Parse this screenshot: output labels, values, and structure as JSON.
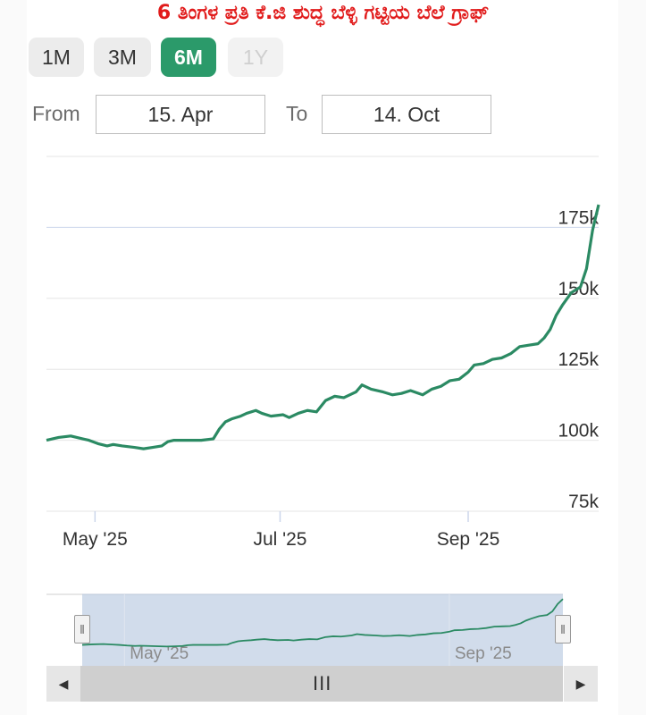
{
  "title": "6 ತಿಂಗಳ ಪ್ರತಿ ಕೆ.ಜಿ ಶುದ್ಧ ಬೆಳ್ಳಿ ಗಟ್ಟಿಯ ಬೆಲೆ ಗ್ರಾಫ್",
  "range_buttons": [
    {
      "label": "1M",
      "state": "normal"
    },
    {
      "label": "3M",
      "state": "normal"
    },
    {
      "label": "6M",
      "state": "active"
    },
    {
      "label": "1Y",
      "state": "disabled"
    }
  ],
  "date_range": {
    "from_label": "From",
    "from_value": "15. Apr",
    "to_label": "To",
    "to_value": "14. Oct"
  },
  "colors": {
    "line": "#2b8a63",
    "active_button": "#2b9a6a",
    "title": "#e11b1b",
    "navigator_mask": "#c9d6e8"
  },
  "navigator": {
    "x_labels": [
      "May '25",
      "Sep '25"
    ],
    "scroll_grip": "III"
  },
  "chart_data": {
    "type": "line",
    "x_ticks": [
      "May '25",
      "Jul '25",
      "Sep '25"
    ],
    "y_ticks": [
      "75k",
      "100k",
      "125k",
      "150k",
      "175k"
    ],
    "ylim": [
      75000,
      200000
    ],
    "grid": "horizontal",
    "x_start": "2025-04-15",
    "x_end": "2025-10-14",
    "series": [
      {
        "x": [
          "2025-04-15",
          "2025-04-19",
          "2025-04-23",
          "2025-04-27",
          "2025-04-29",
          "2025-05-02",
          "2025-05-05",
          "2025-05-07",
          "2025-05-10",
          "2025-05-14",
          "2025-05-17",
          "2025-05-20",
          "2025-05-23",
          "2025-05-25",
          "2025-05-27",
          "2025-05-29",
          "2025-06-01",
          "2025-06-05",
          "2025-06-09",
          "2025-06-11",
          "2025-06-13",
          "2025-06-15",
          "2025-06-18",
          "2025-06-20",
          "2025-06-23",
          "2025-06-25",
          "2025-06-28",
          "2025-07-02",
          "2025-07-04",
          "2025-07-07",
          "2025-07-10",
          "2025-07-13",
          "2025-07-16",
          "2025-07-19",
          "2025-07-22",
          "2025-07-26",
          "2025-07-28",
          "2025-07-31",
          "2025-08-04",
          "2025-08-07",
          "2025-08-10",
          "2025-08-13",
          "2025-08-17",
          "2025-08-20",
          "2025-08-23",
          "2025-08-26",
          "2025-08-29",
          "2025-09-01",
          "2025-09-03",
          "2025-09-06",
          "2025-09-09",
          "2025-09-12",
          "2025-09-15",
          "2025-09-18",
          "2025-09-21",
          "2025-09-24",
          "2025-09-26",
          "2025-09-28",
          "2025-09-30",
          "2025-10-02",
          "2025-10-05",
          "2025-10-08",
          "2025-10-10",
          "2025-10-12",
          "2025-10-14"
        ],
        "y": [
          100000,
          101000,
          101500,
          100500,
          100000,
          98800,
          98000,
          98500,
          98000,
          97500,
          97000,
          97500,
          98000,
          99500,
          100000,
          100000,
          100000,
          100000,
          100500,
          104000,
          106500,
          107500,
          108500,
          109500,
          110500,
          109500,
          108500,
          109000,
          108000,
          109500,
          110500,
          110000,
          114000,
          115500,
          115000,
          117000,
          119500,
          118000,
          117000,
          116000,
          116500,
          117500,
          116000,
          118000,
          119000,
          121000,
          121500,
          124000,
          126500,
          127000,
          128500,
          129000,
          130500,
          133000,
          133500,
          134000,
          136000,
          139000,
          144000,
          147500,
          152000,
          154000,
          160500,
          174000,
          183000
        ]
      }
    ]
  }
}
